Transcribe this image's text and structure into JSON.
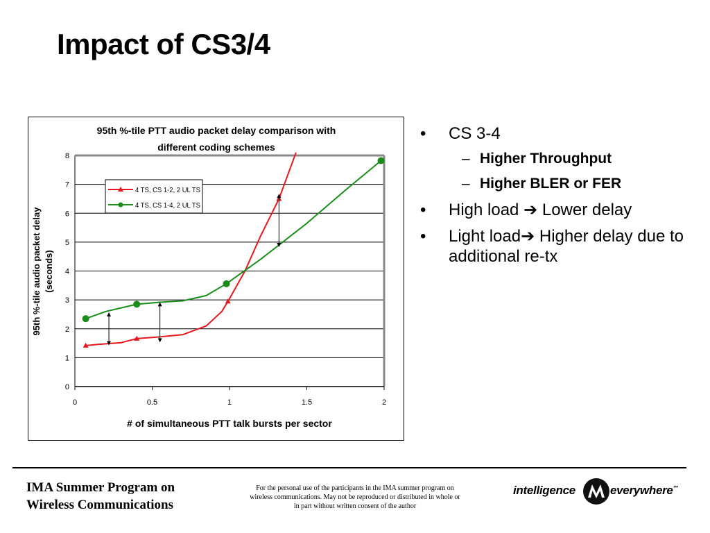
{
  "slide": {
    "title": "Impact of CS3/4"
  },
  "chart_data": {
    "type": "line",
    "title_lines": [
      "95th %-tile PTT audio packet delay comparison with",
      "different coding schemes"
    ],
    "xlabel": "# of simultaneous PTT talk bursts per sector",
    "ylabel_lines": [
      "95th %-tile audio packet delay",
      "(seconds)"
    ],
    "xlim": [
      0,
      2
    ],
    "ylim": [
      0,
      8
    ],
    "x_ticks": [
      0,
      0.5,
      1,
      1.5,
      2
    ],
    "x_tick_labels": [
      "0",
      "0.5",
      "1",
      "1.5",
      "2"
    ],
    "y_ticks": [
      0,
      1,
      2,
      3,
      4,
      5,
      6,
      7,
      8
    ],
    "y_tick_labels": [
      "0",
      "1",
      "2",
      "3",
      "4",
      "5",
      "6",
      "7",
      "8"
    ],
    "grid": "horizontal",
    "legend_position": "top-left",
    "series": [
      {
        "name": "4 TS, CS 1-2, 2 UL TS",
        "color": "#e8171f",
        "marker": "triangle",
        "points": [
          [
            0.07,
            1.42
          ],
          [
            0.4,
            1.66
          ],
          [
            0.99,
            2.95
          ],
          [
            1.32,
            6.5
          ],
          [
            1.43,
            8.1
          ]
        ],
        "curve": [
          [
            0.07,
            1.42
          ],
          [
            0.15,
            1.46
          ],
          [
            0.3,
            1.52
          ],
          [
            0.4,
            1.66
          ],
          [
            0.55,
            1.72
          ],
          [
            0.7,
            1.8
          ],
          [
            0.85,
            2.1
          ],
          [
            0.95,
            2.6
          ],
          [
            0.99,
            2.95
          ],
          [
            1.1,
            4.0
          ],
          [
            1.2,
            5.2
          ],
          [
            1.32,
            6.5
          ],
          [
            1.43,
            8.1
          ]
        ]
      },
      {
        "name": "4 TS, CS 1-4, 2 UL TS",
        "color": "#1a8c1a",
        "marker": "circle",
        "points": [
          [
            0.07,
            2.35
          ],
          [
            0.4,
            2.85
          ],
          [
            0.98,
            3.56
          ],
          [
            1.98,
            7.82
          ]
        ],
        "curve": [
          [
            0.07,
            2.35
          ],
          [
            0.2,
            2.6
          ],
          [
            0.4,
            2.85
          ],
          [
            0.55,
            2.92
          ],
          [
            0.7,
            2.97
          ],
          [
            0.85,
            3.15
          ],
          [
            0.98,
            3.56
          ],
          [
            1.2,
            4.4
          ],
          [
            1.5,
            5.65
          ],
          [
            1.75,
            6.8
          ],
          [
            1.98,
            7.82
          ]
        ]
      }
    ],
    "annotations": [
      {
        "type": "double-arrow",
        "x": 0.22,
        "y1": 1.5,
        "y2": 2.5
      },
      {
        "type": "double-arrow",
        "x": 0.55,
        "y1": 1.6,
        "y2": 2.85
      },
      {
        "type": "double-arrow",
        "x": 1.32,
        "y1": 4.9,
        "y2": 6.6
      }
    ]
  },
  "bullets": [
    {
      "text": "CS 3-4",
      "sub": [
        "Higher Throughput",
        "Higher BLER or FER"
      ]
    },
    {
      "pre": "High load ",
      "post": " Lower delay"
    },
    {
      "pre": "Light load",
      "post": " Higher delay due to additional re-tx"
    }
  ],
  "bullet_mark": "•",
  "sub_mark": "–",
  "arrow_glyph": "➔",
  "footer": {
    "left_lines": [
      "IMA Summer Program on",
      "Wireless Communications"
    ],
    "notice_lines": [
      "For the personal use of the participants in the IMA summer program on",
      "wireless communications. May not be reproduced or distributed  in whole or",
      "in part without written consent of the author"
    ],
    "brand_left": "intelligence",
    "brand_right": "everywhere",
    "trademark": "™"
  }
}
